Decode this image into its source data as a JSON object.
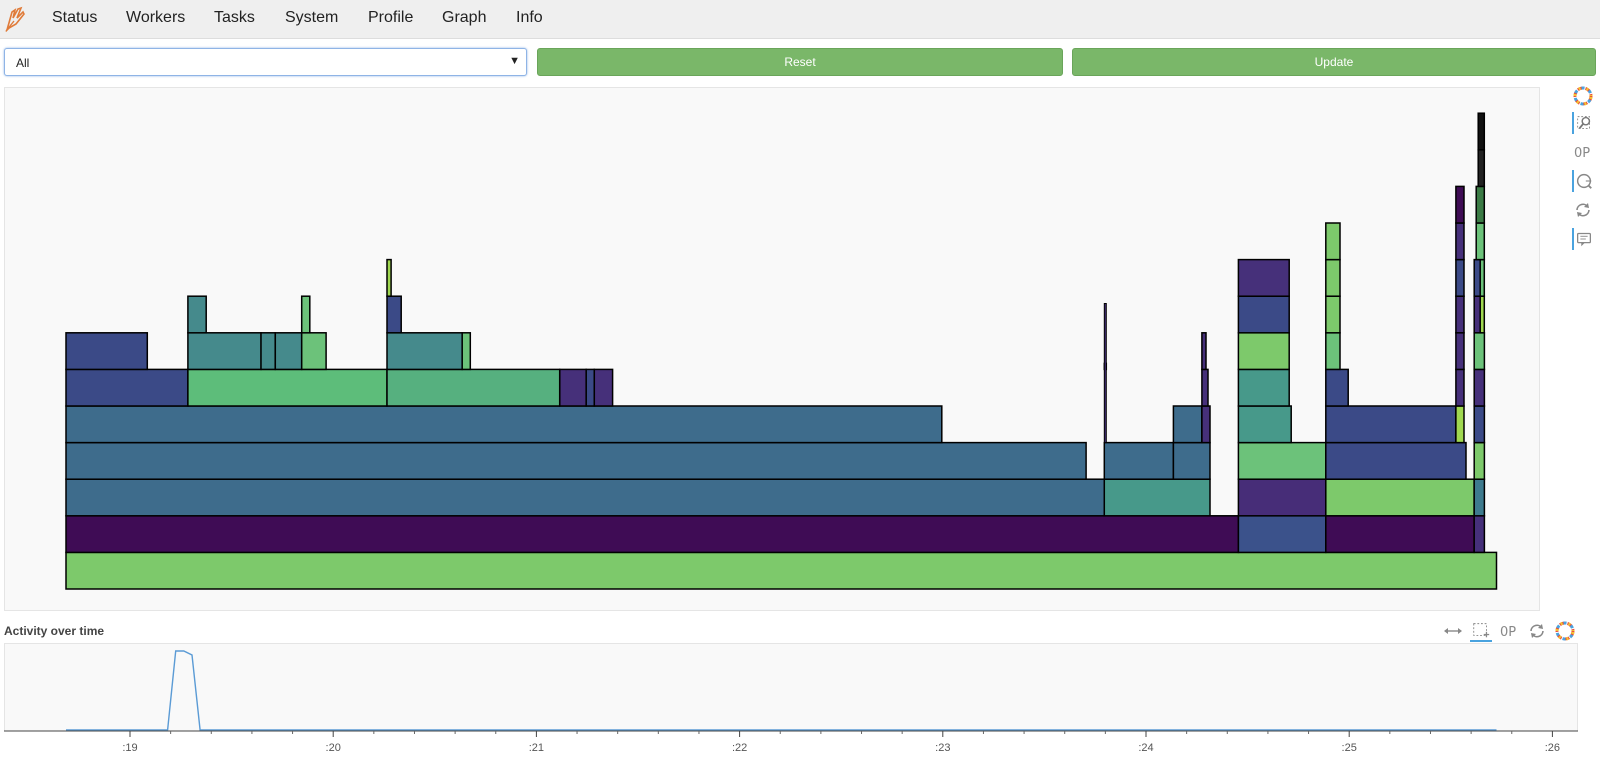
{
  "nav": {
    "items": [
      "Status",
      "Workers",
      "Tasks",
      "System",
      "Profile",
      "Graph",
      "Info"
    ]
  },
  "controls": {
    "select_value": "All",
    "reset_label": "Reset",
    "update_label": "Update"
  },
  "activity": {
    "title": "Activity over time"
  },
  "chart_data": {
    "type": "flamegraph",
    "x_ticks": [
      ":19",
      ":20",
      ":21",
      ":22",
      ":23",
      ":24",
      ":25",
      ":26"
    ],
    "x_domain_seconds": [
      18.68,
      25.75
    ],
    "blocks": [
      {
        "start": 18.68,
        "end": 25.72,
        "level": 0,
        "color": "#7dc96b"
      },
      {
        "start": 18.68,
        "end": 24.45,
        "level": 1,
        "color": "#3f0c55"
      },
      {
        "start": 24.45,
        "end": 24.88,
        "level": 1,
        "color": "#3b528b"
      },
      {
        "start": 24.88,
        "end": 25.61,
        "level": 1,
        "color": "#3f0c55"
      },
      {
        "start": 25.61,
        "end": 25.66,
        "level": 1,
        "color": "#46307a"
      },
      {
        "start": 18.68,
        "end": 23.79,
        "level": 2,
        "color": "#3e6c8c"
      },
      {
        "start": 23.79,
        "end": 24.31,
        "level": 2,
        "color": "#47998a"
      },
      {
        "start": 24.45,
        "end": 24.88,
        "level": 2,
        "color": "#472d78"
      },
      {
        "start": 24.88,
        "end": 25.61,
        "level": 2,
        "color": "#7dc96b"
      },
      {
        "start": 25.61,
        "end": 25.66,
        "level": 2,
        "color": "#3e7b8e"
      },
      {
        "start": 18.68,
        "end": 23.7,
        "level": 3,
        "color": "#3e6c8c"
      },
      {
        "start": 23.79,
        "end": 24.13,
        "level": 3,
        "color": "#3e6c8c"
      },
      {
        "start": 24.13,
        "end": 24.31,
        "level": 3,
        "color": "#3e6c8c"
      },
      {
        "start": 24.45,
        "end": 24.88,
        "level": 3,
        "color": "#6cc27a"
      },
      {
        "start": 24.88,
        "end": 25.57,
        "level": 3,
        "color": "#3b4a87"
      },
      {
        "start": 25.61,
        "end": 25.66,
        "level": 3,
        "color": "#7dc96b"
      },
      {
        "start": 18.68,
        "end": 22.99,
        "level": 4,
        "color": "#3e6c8c"
      },
      {
        "start": 24.13,
        "end": 24.27,
        "level": 4,
        "color": "#3e6c8c"
      },
      {
        "start": 24.27,
        "end": 24.31,
        "level": 4,
        "color": "#46307a"
      },
      {
        "start": 24.45,
        "end": 24.71,
        "level": 4,
        "color": "#47998a"
      },
      {
        "start": 24.88,
        "end": 25.52,
        "level": 4,
        "color": "#3b4a87"
      },
      {
        "start": 25.52,
        "end": 25.56,
        "level": 4,
        "color": "#a0d850"
      },
      {
        "start": 25.61,
        "end": 25.66,
        "level": 4,
        "color": "#3b4a87"
      },
      {
        "start": 18.68,
        "end": 19.28,
        "level": 5,
        "color": "#3b4a87"
      },
      {
        "start": 19.28,
        "end": 20.26,
        "level": 5,
        "color": "#5dbd7a"
      },
      {
        "start": 20.26,
        "end": 21.11,
        "level": 5,
        "color": "#56b07f"
      },
      {
        "start": 21.11,
        "end": 21.24,
        "level": 5,
        "color": "#46307a"
      },
      {
        "start": 21.24,
        "end": 21.28,
        "level": 5,
        "color": "#3b4a87"
      },
      {
        "start": 21.28,
        "end": 21.37,
        "level": 5,
        "color": "#46307a"
      },
      {
        "start": 24.27,
        "end": 24.3,
        "level": 5,
        "color": "#46307a"
      },
      {
        "start": 24.45,
        "end": 24.7,
        "level": 5,
        "color": "#47998a"
      },
      {
        "start": 24.88,
        "end": 24.99,
        "level": 5,
        "color": "#3b4a87"
      },
      {
        "start": 25.52,
        "end": 25.56,
        "level": 5,
        "color": "#46307a"
      },
      {
        "start": 25.61,
        "end": 25.66,
        "level": 5,
        "color": "#46307a"
      },
      {
        "start": 18.68,
        "end": 19.08,
        "level": 6,
        "color": "#3b4a87"
      },
      {
        "start": 19.28,
        "end": 19.64,
        "level": 6,
        "color": "#458a8c"
      },
      {
        "start": 19.64,
        "end": 19.71,
        "level": 6,
        "color": "#458a8c"
      },
      {
        "start": 19.71,
        "end": 19.84,
        "level": 6,
        "color": "#458a8c"
      },
      {
        "start": 19.84,
        "end": 19.96,
        "level": 6,
        "color": "#6cc27a"
      },
      {
        "start": 20.26,
        "end": 20.63,
        "level": 6,
        "color": "#458a8c"
      },
      {
        "start": 20.63,
        "end": 20.67,
        "level": 6,
        "color": "#6cc27a"
      },
      {
        "start": 24.27,
        "end": 24.29,
        "level": 6,
        "color": "#46307a"
      },
      {
        "start": 24.45,
        "end": 24.7,
        "level": 6,
        "color": "#7dc96b"
      },
      {
        "start": 24.88,
        "end": 24.95,
        "level": 6,
        "color": "#6cc27a"
      },
      {
        "start": 25.52,
        "end": 25.56,
        "level": 6,
        "color": "#46307a"
      },
      {
        "start": 25.61,
        "end": 25.66,
        "level": 6,
        "color": "#6cc27a"
      },
      {
        "start": 23.79,
        "end": 23.8,
        "level": 6,
        "color": "#46307a",
        "height": 6
      },
      {
        "start": 19.28,
        "end": 19.37,
        "level": 7,
        "color": "#458a8c"
      },
      {
        "start": 19.84,
        "end": 19.88,
        "level": 7,
        "color": "#6cc27a"
      },
      {
        "start": 20.26,
        "end": 20.33,
        "level": 7,
        "color": "#3b4a87"
      },
      {
        "start": 24.45,
        "end": 24.7,
        "level": 7,
        "color": "#3b4a87"
      },
      {
        "start": 24.88,
        "end": 24.95,
        "level": 7,
        "color": "#7dc96b"
      },
      {
        "start": 25.52,
        "end": 25.56,
        "level": 7,
        "color": "#46307a"
      },
      {
        "start": 25.61,
        "end": 25.64,
        "level": 7,
        "color": "#46307a"
      },
      {
        "start": 25.64,
        "end": 25.66,
        "level": 7,
        "color": "#a0d850"
      },
      {
        "start": 20.26,
        "end": 20.28,
        "level": 8,
        "color": "#a0d850"
      },
      {
        "start": 24.45,
        "end": 24.7,
        "level": 8,
        "color": "#46307a"
      },
      {
        "start": 24.88,
        "end": 24.95,
        "level": 8,
        "color": "#7dc96b"
      },
      {
        "start": 25.52,
        "end": 25.56,
        "level": 8,
        "color": "#3b4a87"
      },
      {
        "start": 25.61,
        "end": 25.64,
        "level": 8,
        "color": "#3b4a87"
      },
      {
        "start": 25.64,
        "end": 25.66,
        "level": 8,
        "color": "#6cc27a"
      },
      {
        "start": 24.88,
        "end": 24.95,
        "level": 9,
        "color": "#7dc96b"
      },
      {
        "start": 25.52,
        "end": 25.56,
        "level": 9,
        "color": "#46307a"
      },
      {
        "start": 25.62,
        "end": 25.66,
        "level": 9,
        "color": "#6cc27a"
      },
      {
        "start": 25.52,
        "end": 25.56,
        "level": 10,
        "color": "#3f0c55"
      },
      {
        "start": 25.62,
        "end": 25.66,
        "level": 10,
        "color": "#3b7b45"
      },
      {
        "start": 25.63,
        "end": 25.66,
        "level": 11,
        "color": "#222222"
      },
      {
        "start": 25.63,
        "end": 25.66,
        "level": 12,
        "color": "#111111"
      }
    ],
    "activity_series": {
      "x": [
        18.68,
        19.18,
        19.22,
        19.26,
        19.3,
        19.34,
        25.72
      ],
      "y": [
        0,
        0,
        1.0,
        1.0,
        0.95,
        0,
        0
      ]
    }
  }
}
